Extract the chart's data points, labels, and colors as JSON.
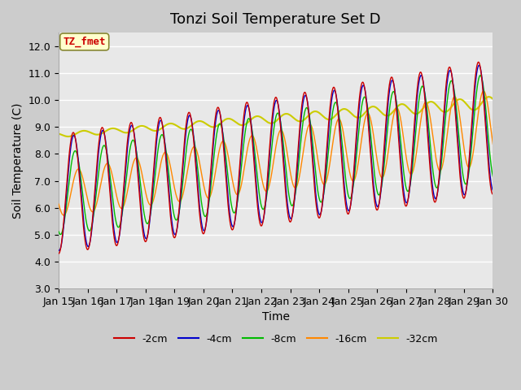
{
  "title": "Tonzi Soil Temperature Set D",
  "xlabel": "Time",
  "ylabel": "Soil Temperature (C)",
  "ylim": [
    3.0,
    12.5
  ],
  "yticks": [
    3.0,
    4.0,
    5.0,
    6.0,
    7.0,
    8.0,
    9.0,
    10.0,
    11.0,
    12.0
  ],
  "x_tick_labels": [
    "Jan 15",
    "Jan 16",
    "Jan 17",
    "Jan 18",
    "Jan 19",
    "Jan 20",
    "Jan 21",
    "Jan 22",
    "Jan 23",
    "Jan 24",
    "Jan 25",
    "Jan 26",
    "Jan 27",
    "Jan 28",
    "Jan 29",
    "Jan 30"
  ],
  "colors": {
    "-2cm": "#cc0000",
    "-4cm": "#0000cc",
    "-8cm": "#00bb00",
    "-16cm": "#ff8800",
    "-32cm": "#cccc00"
  },
  "legend_labels": [
    "-2cm",
    "-4cm",
    "-8cm",
    "-16cm",
    "-32cm"
  ],
  "annotation_text": "TZ_fmet",
  "annotation_color": "#cc0000",
  "annotation_bg": "#ffffcc",
  "annotation_border": "#888833",
  "fig_bg": "#cccccc",
  "plot_bg": "#e8e8e8",
  "title_fontsize": 13,
  "label_fontsize": 10,
  "tick_fontsize": 9,
  "legend_fontsize": 9
}
